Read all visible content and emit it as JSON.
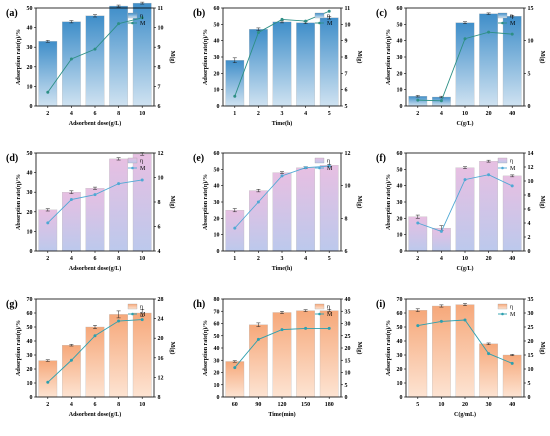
{
  "colors": {
    "blue_bar": "#5c9fd0",
    "blue_line": "#2d8f85",
    "pink_bar": "#d9b6da",
    "pink_line": "#4fa8d4",
    "orange_bar": "#f6b48a",
    "orange_line": "#2d9fae"
  },
  "chart_data": [
    {
      "id": "a",
      "panel_label": "(a)",
      "type": "bar",
      "categories": [
        "2",
        "4",
        "6",
        "8",
        "10"
      ],
      "xlabel": "Adsorbent dose(g/L)",
      "ylabel": "Adsorption rate(η)/%",
      "y2label": "M(g)",
      "ylim": [
        0,
        50
      ],
      "yticks": [
        "0",
        "10",
        "20",
        "30",
        "40",
        "50"
      ],
      "y2lim": [
        6,
        11
      ],
      "y2ticks": [
        "6",
        "7",
        "8",
        "9",
        "10",
        "11"
      ],
      "legend": [
        "η",
        "M"
      ],
      "style": "blue",
      "bar_values": [
        33,
        43,
        46,
        51,
        52.5
      ],
      "bar_err": [
        0.5,
        0.6,
        0.6,
        0.5,
        0.5
      ],
      "line_values": [
        6.7,
        8.4,
        8.9,
        10.2,
        10.5
      ]
    },
    {
      "id": "b",
      "panel_label": "(b)",
      "type": "bar",
      "categories": [
        "1",
        "2",
        "3",
        "4",
        "5"
      ],
      "xlabel": "Time(h)",
      "ylabel": "Adsorption rate(η)/%",
      "y2label": "M(g)",
      "ylim": [
        0,
        60
      ],
      "yticks": [
        "0",
        "10",
        "20",
        "30",
        "40",
        "50",
        "60"
      ],
      "y2lim": [
        5,
        11
      ],
      "y2ticks": [
        "5",
        "6",
        "7",
        "8",
        "9",
        "10",
        "11"
      ],
      "legend": [
        "η",
        "M"
      ],
      "style": "blue",
      "bar_values": [
        28,
        47,
        51.5,
        51,
        54
      ],
      "bar_err": [
        1.5,
        0.8,
        0.6,
        0.6,
        0.8
      ],
      "line_values": [
        5.6,
        9.5,
        10.3,
        10.2,
        10.8
      ]
    },
    {
      "id": "c",
      "panel_label": "(c)",
      "type": "bar",
      "categories": [
        "2",
        "4",
        "10",
        "20",
        "40"
      ],
      "xlabel": "C(g/L)",
      "ylabel": "Adsorption rate(η)/%",
      "y2label": "M(g)",
      "ylim": [
        0,
        60
      ],
      "yticks": [
        "0",
        "10",
        "20",
        "30",
        "40",
        "50",
        "60"
      ],
      "y2lim": [
        0,
        15
      ],
      "y2ticks": [
        "0",
        "5",
        "10",
        "15"
      ],
      "legend": [
        "η",
        "M"
      ],
      "style": "blue",
      "bar_values": [
        6,
        5.5,
        51,
        56.5,
        55
      ],
      "bar_err": [
        0.5,
        0.5,
        0.6,
        0.5,
        0.5
      ],
      "line_values": [
        0.9,
        0.8,
        10.3,
        11.3,
        11
      ]
    },
    {
      "id": "d",
      "panel_label": "(d)",
      "type": "bar",
      "categories": [
        "2",
        "4",
        "6",
        "8",
        "10"
      ],
      "xlabel": "Adsorbent dose(g/L)",
      "ylabel": "Absorption rate(η)/%",
      "y2label": "M(g)",
      "ylim": [
        0,
        50
      ],
      "yticks": [
        "0",
        "10",
        "20",
        "30",
        "40",
        "50"
      ],
      "y2lim": [
        4,
        12
      ],
      "y2ticks": [
        "4",
        "6",
        "8",
        "10",
        "12"
      ],
      "legend": [
        "η",
        "M"
      ],
      "style": "pink",
      "bar_values": [
        21,
        30,
        32,
        47,
        49.5
      ],
      "bar_err": [
        0.6,
        0.7,
        0.6,
        0.6,
        0.7
      ],
      "line_values": [
        6.3,
        8.2,
        8.6,
        9.5,
        9.8
      ]
    },
    {
      "id": "e",
      "panel_label": "(e)",
      "type": "bar",
      "categories": [
        "1",
        "2",
        "3",
        "4",
        "5"
      ],
      "xlabel": "Time(h)",
      "ylabel": "Absorption rate(η)/%",
      "y2label": "M(g)",
      "ylim": [
        0,
        60
      ],
      "yticks": [
        "0",
        "10",
        "20",
        "30",
        "40",
        "50",
        "60"
      ],
      "y2lim": [
        6,
        12
      ],
      "y2ticks": [
        "6",
        "8",
        "10",
        "12"
      ],
      "legend": [
        "η",
        "M"
      ],
      "style": "pink",
      "bar_values": [
        25,
        37,
        48,
        51,
        52.5
      ],
      "bar_err": [
        1,
        0.8,
        0.6,
        0.6,
        0.6
      ],
      "line_values": [
        7.4,
        9,
        10.6,
        11.1,
        11.2
      ]
    },
    {
      "id": "f",
      "panel_label": "(f)",
      "type": "bar",
      "categories": [
        "2",
        "4",
        "10",
        "20",
        "40"
      ],
      "xlabel": "C(g/L)",
      "ylabel": "Absorption rate(η)/%",
      "y2label": "M(g)",
      "ylim": [
        0,
        60
      ],
      "yticks": [
        "0",
        "10",
        "20",
        "30",
        "40",
        "50",
        "60"
      ],
      "y2lim": [
        0,
        14
      ],
      "y2ticks": [
        "0",
        "2",
        "4",
        "6",
        "8",
        "10",
        "12",
        "14"
      ],
      "legend": [
        "η",
        "M"
      ],
      "style": "pink",
      "bar_values": [
        21,
        14,
        51,
        55,
        46
      ],
      "bar_err": [
        1,
        1.5,
        0.6,
        0.6,
        0.6
      ],
      "line_values": [
        4,
        2.8,
        10.2,
        10.9,
        9.3
      ]
    },
    {
      "id": "g",
      "panel_label": "(g)",
      "type": "bar",
      "categories": [
        "2",
        "4",
        "6",
        "8",
        "10"
      ],
      "xlabel": "Adsorbent dose(g/L)",
      "ylabel": "Adsorption rate(η)/%",
      "y2label": "M(g)",
      "ylim": [
        0,
        70
      ],
      "yticks": [
        "0",
        "10",
        "20",
        "30",
        "40",
        "50",
        "60",
        "70"
      ],
      "y2lim": [
        8,
        28
      ],
      "y2ticks": [
        "8",
        "12",
        "16",
        "20",
        "24",
        "28"
      ],
      "legend": [
        "η",
        "M"
      ],
      "style": "orange",
      "bar_values": [
        26,
        37,
        50,
        59,
        60
      ],
      "bar_err": [
        0.6,
        0.6,
        1.2,
        2.5,
        2.5
      ],
      "line_values": [
        11,
        15.5,
        20.5,
        23.5,
        23.8
      ]
    },
    {
      "id": "h",
      "panel_label": "(h)",
      "type": "bar",
      "categories": [
        "60",
        "90",
        "120",
        "150",
        "180"
      ],
      "xlabel": "Time(min)",
      "ylabel": "Adsorption rate(η)/%",
      "y2label": "M(g)",
      "ylim": [
        0,
        80
      ],
      "yticks": [
        "0",
        "10",
        "20",
        "30",
        "40",
        "50",
        "60",
        "70",
        "80"
      ],
      "y2lim": [
        0,
        40
      ],
      "y2ticks": [
        "0",
        "5",
        "10",
        "15",
        "20",
        "25",
        "30",
        "35",
        "40"
      ],
      "legend": [
        "η",
        "M"
      ],
      "style": "orange",
      "bar_values": [
        29,
        59,
        69,
        70.5,
        70.5
      ],
      "bar_err": [
        0.6,
        1.5,
        1,
        0.8,
        0.8
      ],
      "line_values": [
        12,
        23.5,
        27.5,
        28,
        28
      ]
    },
    {
      "id": "i",
      "panel_label": "(i)",
      "type": "bar",
      "categories": [
        "5",
        "10",
        "20",
        "30",
        "40"
      ],
      "xlabel": "C(g/mL)",
      "ylabel": "Adsorption rate(η)/%",
      "y2label": "M(g)",
      "ylim": [
        0,
        70
      ],
      "yticks": [
        "0",
        "10",
        "20",
        "30",
        "40",
        "50",
        "60",
        "70"
      ],
      "y2lim": [
        0,
        35
      ],
      "y2ticks": [
        "0",
        "5",
        "10",
        "15",
        "20",
        "25",
        "30",
        "35"
      ],
      "legend": [
        "η",
        "M"
      ],
      "style": "orange",
      "bar_values": [
        62,
        65,
        66,
        38,
        30
      ],
      "bar_err": [
        1,
        0.8,
        0.8,
        0.6,
        0.5
      ],
      "line_values": [
        25.5,
        27,
        27.5,
        15.5,
        12
      ]
    }
  ]
}
